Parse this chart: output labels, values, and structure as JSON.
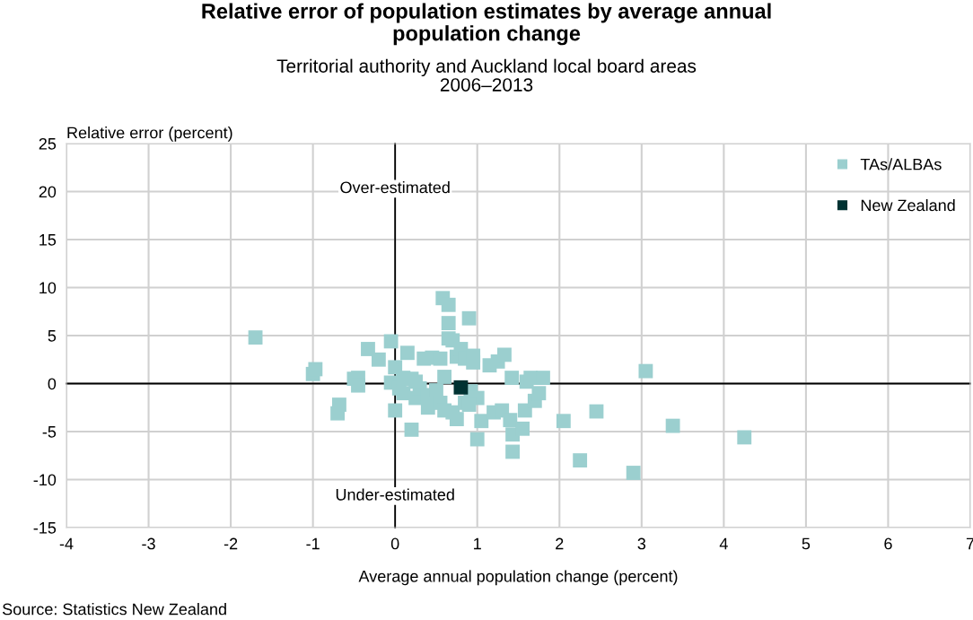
{
  "chart_data": {
    "type": "scatter",
    "title": "Relative error of population estimates by average annual\npopulation change",
    "subtitle": "Territorial authority and Auckland local board areas\n2006–2013",
    "xlabel": "Average annual population change (percent)",
    "ylabel": "Relative error (percent)",
    "annotations": [
      "Over-estimated",
      "Under-estimated",
      "Source: Statistics New Zealand"
    ],
    "xlim": [
      -4,
      7
    ],
    "xticks": [
      -4,
      -3,
      -2,
      -1,
      0,
      1,
      2,
      3,
      4,
      5,
      6,
      7
    ],
    "ylim": [
      -15,
      25
    ],
    "yticks": [
      -15,
      -10,
      -5,
      0,
      5,
      10,
      15,
      20,
      25
    ],
    "grid": true,
    "legend": "top right",
    "marker": "square",
    "series": [
      {
        "name": "TAs/ALBAs",
        "color": "#9bcfcf",
        "x": [
          -1.7,
          -1.0,
          -0.97,
          -0.7,
          -0.68,
          -0.5,
          -0.45,
          -0.45,
          -0.33,
          -0.2,
          -0.05,
          0.0,
          0.0,
          -0.05,
          0.05,
          0.1,
          0.15,
          0.2,
          0.2,
          0.25,
          0.3,
          0.35,
          0.4,
          0.4,
          0.45,
          0.5,
          0.55,
          0.55,
          0.58,
          0.6,
          0.65,
          0.65,
          0.65,
          0.6,
          0.7,
          0.7,
          0.75,
          0.75,
          0.8,
          0.85,
          0.85,
          0.9,
          0.92,
          0.95,
          0.95,
          1.0,
          1.05,
          1.0,
          1.15,
          1.2,
          1.25,
          1.3,
          1.33,
          1.4,
          1.42,
          1.43,
          1.43,
          1.55,
          1.58,
          1.6,
          1.65,
          1.7,
          1.75,
          1.8,
          2.05,
          2.25,
          2.45,
          2.9,
          3.05,
          3.38,
          4.25,
          0.25,
          0.1,
          0.9
        ],
        "values": [
          4.8,
          1.0,
          1.5,
          -3.1,
          -2.2,
          0.5,
          0.6,
          -0.2,
          3.6,
          2.5,
          4.4,
          -2.8,
          1.7,
          0.1,
          -0.5,
          -1.0,
          3.2,
          -4.8,
          0.5,
          -1.5,
          -0.5,
          2.6,
          -1.2,
          -2.5,
          2.7,
          -0.7,
          2.6,
          -2.0,
          8.9,
          -2.8,
          8.2,
          6.3,
          4.7,
          0.7,
          4.5,
          -3.0,
          -3.7,
          2.8,
          3.6,
          -2.0,
          2.6,
          6.8,
          -0.8,
          2.9,
          2.2,
          -1.5,
          -3.9,
          -5.8,
          1.9,
          -3.0,
          2.3,
          -2.8,
          3.0,
          -3.8,
          0.6,
          -5.3,
          -7.1,
          -4.7,
          -2.8,
          0.2,
          0.6,
          -1.8,
          -1.0,
          0.6,
          -3.9,
          -8.0,
          -2.9,
          -9.3,
          1.3,
          -4.4,
          -5.6,
          0.2,
          0.6,
          -2.2
        ]
      },
      {
        "name": "New Zealand",
        "color": "#003333",
        "x": [
          0.8
        ],
        "values": [
          -0.4
        ]
      }
    ]
  }
}
